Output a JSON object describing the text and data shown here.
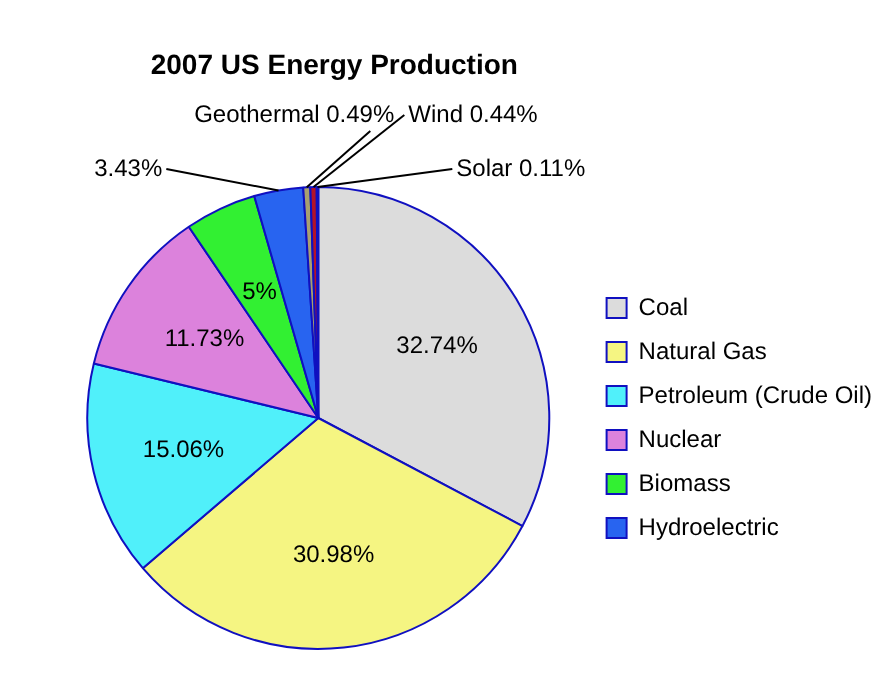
{
  "chart_data": {
    "type": "pie",
    "title": "2007 US Energy Production",
    "categories": [
      "Coal",
      "Natural Gas",
      "Petroleum (Crude Oil)",
      "Nuclear",
      "Biomass",
      "Hydroelectric",
      "Geothermal",
      "Wind",
      "Solar"
    ],
    "values": [
      32.74,
      30.98,
      15.06,
      11.73,
      5,
      3.43,
      0.49,
      0.44,
      0.11
    ],
    "colors": [
      "#dcdcdc",
      "#f5f582",
      "#50f0fa",
      "#dc82dc",
      "#32f032",
      "#2864f0",
      "#a8a070",
      "#b41428",
      "#e07800"
    ],
    "value_labels": [
      "32.74%",
      "30.98%",
      "15.06%",
      "11.73%",
      "5%",
      "3.43%",
      "0.49%",
      "0.44%",
      "0.11%"
    ],
    "legend": "right"
  }
}
